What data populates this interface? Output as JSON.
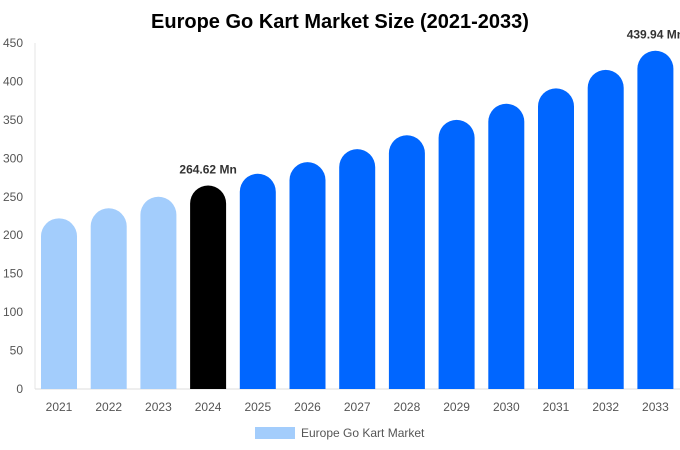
{
  "chart_data": {
    "type": "bar",
    "title": "Europe Go Kart Market Size (2021-2033)",
    "categories": [
      "2021",
      "2022",
      "2023",
      "2024",
      "2025",
      "2026",
      "2027",
      "2028",
      "2029",
      "2030",
      "2031",
      "2032",
      "2033"
    ],
    "series": [
      {
        "name": "Europe Go Kart Market",
        "values": [
          222,
          235,
          250,
          264.62,
          280,
          295,
          312,
          330,
          350,
          371,
          391,
          415,
          439.94
        ]
      }
    ],
    "data_labels": [
      {
        "index": 3,
        "text": "264.62 Mn"
      },
      {
        "index": 12,
        "text": "439.94 Mn"
      }
    ],
    "yticks": [
      0,
      50,
      100,
      150,
      200,
      250,
      300,
      350,
      400,
      450
    ],
    "ylim": [
      0,
      450
    ],
    "grid": false,
    "legend": "bottom",
    "colors": {
      "historic": "#a3cdfc",
      "current": "#000000",
      "forecast": "#0066ff",
      "legend": "#a3cdfc"
    }
  }
}
